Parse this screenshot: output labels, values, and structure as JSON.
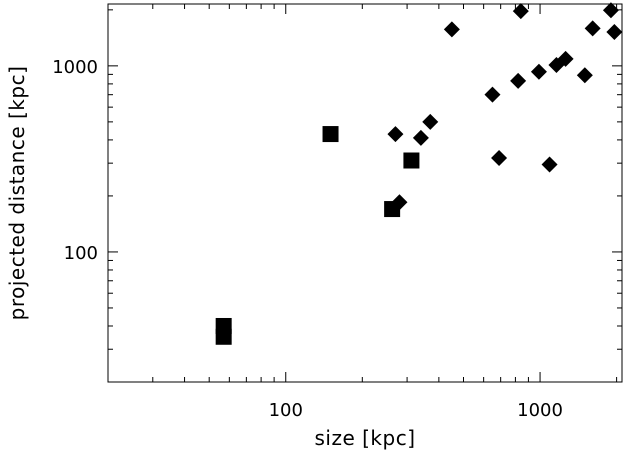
{
  "chart_data": {
    "type": "scatter",
    "xlabel": "size [kpc]",
    "ylabel": "projected distance [kpc]",
    "xscale": "log",
    "yscale": "log",
    "xlim": [
      20,
      2100
    ],
    "ylim": [
      20,
      2150
    ],
    "grid": false,
    "x_ticks": [
      {
        "value": 100,
        "label": "100"
      },
      {
        "value": 1000,
        "label": "1000"
      }
    ],
    "y_ticks": [
      {
        "value": 100,
        "label": "100"
      },
      {
        "value": 1000,
        "label": "1000"
      }
    ],
    "series": [
      {
        "marker": "square",
        "color": "#000000",
        "points": [
          {
            "x": 57,
            "y": 40
          },
          {
            "x": 57,
            "y": 35
          },
          {
            "x": 150,
            "y": 430
          },
          {
            "x": 262,
            "y": 170
          },
          {
            "x": 312,
            "y": 310
          }
        ]
      },
      {
        "marker": "diamond",
        "color": "#000000",
        "points": [
          {
            "x": 270,
            "y": 430
          },
          {
            "x": 280,
            "y": 185
          },
          {
            "x": 340,
            "y": 410
          },
          {
            "x": 370,
            "y": 500
          },
          {
            "x": 450,
            "y": 1570
          },
          {
            "x": 650,
            "y": 700
          },
          {
            "x": 690,
            "y": 320
          },
          {
            "x": 820,
            "y": 830
          },
          {
            "x": 840,
            "y": 1970
          },
          {
            "x": 990,
            "y": 930
          },
          {
            "x": 1090,
            "y": 295
          },
          {
            "x": 1160,
            "y": 1010
          },
          {
            "x": 1260,
            "y": 1090
          },
          {
            "x": 1500,
            "y": 890
          },
          {
            "x": 1610,
            "y": 1590
          },
          {
            "x": 1900,
            "y": 1990
          },
          {
            "x": 1960,
            "y": 1520
          }
        ]
      }
    ]
  }
}
